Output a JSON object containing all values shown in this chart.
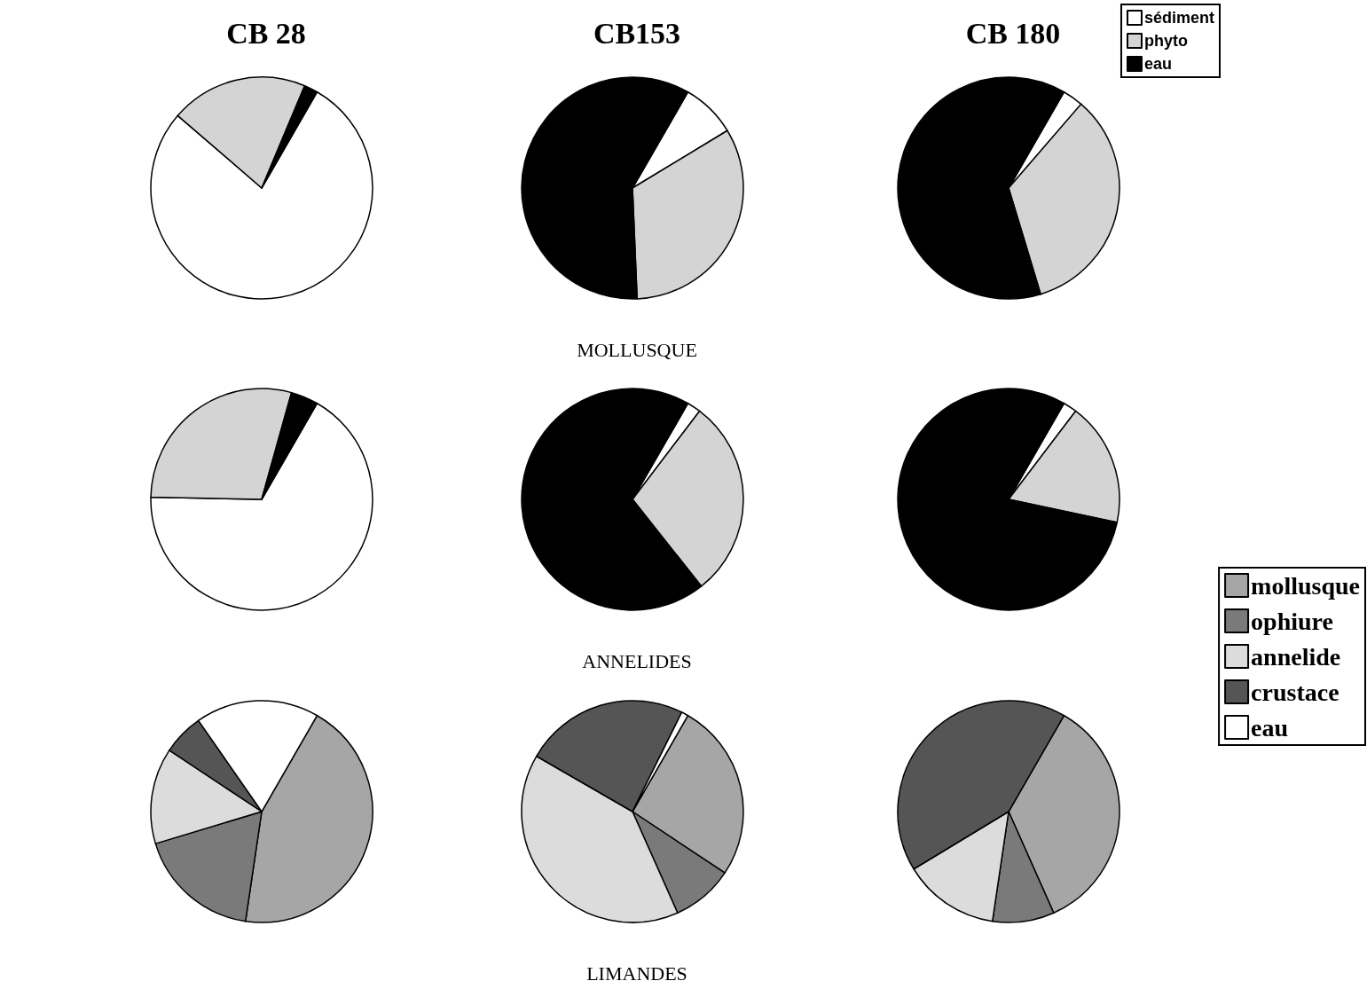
{
  "chart_data": [
    {
      "type": "pie",
      "legend": "top right",
      "annotations": [
        "MOLLUSQUE",
        "ANNELIDES"
      ],
      "categories": [
        "sédiment",
        "phyto",
        "eau"
      ],
      "colors": [
        "#ffffff",
        "#d4d4d4",
        "#000000"
      ],
      "series": [
        {
          "name": "CB 28",
          "values": [
            78,
            20,
            2
          ]
        },
        {
          "name": "CB153",
          "values": [
            8,
            33,
            59
          ]
        },
        {
          "name": "CB 180",
          "values": [
            3,
            34,
            63
          ]
        },
        {
          "values": [
            67,
            29,
            4
          ]
        },
        {
          "values": [
            2,
            29,
            69
          ]
        },
        {
          "values": [
            2,
            18,
            80
          ]
        }
      ]
    },
    {
      "type": "pie",
      "legend": "right",
      "annotations": [
        "LIMANDES"
      ],
      "categories": [
        "mollusque",
        "ophiure",
        "annelide",
        "crustace",
        "eau"
      ],
      "colors": [
        "#a6a6a6",
        "#7a7a7a",
        "#dcdcdc",
        "#555555",
        "#ffffff"
      ],
      "series": [
        {
          "values": [
            44,
            18,
            14,
            6,
            18
          ]
        },
        {
          "values": [
            26,
            9,
            40,
            24,
            1
          ]
        },
        {
          "values": [
            35,
            9,
            14,
            42,
            null
          ]
        }
      ]
    }
  ]
}
